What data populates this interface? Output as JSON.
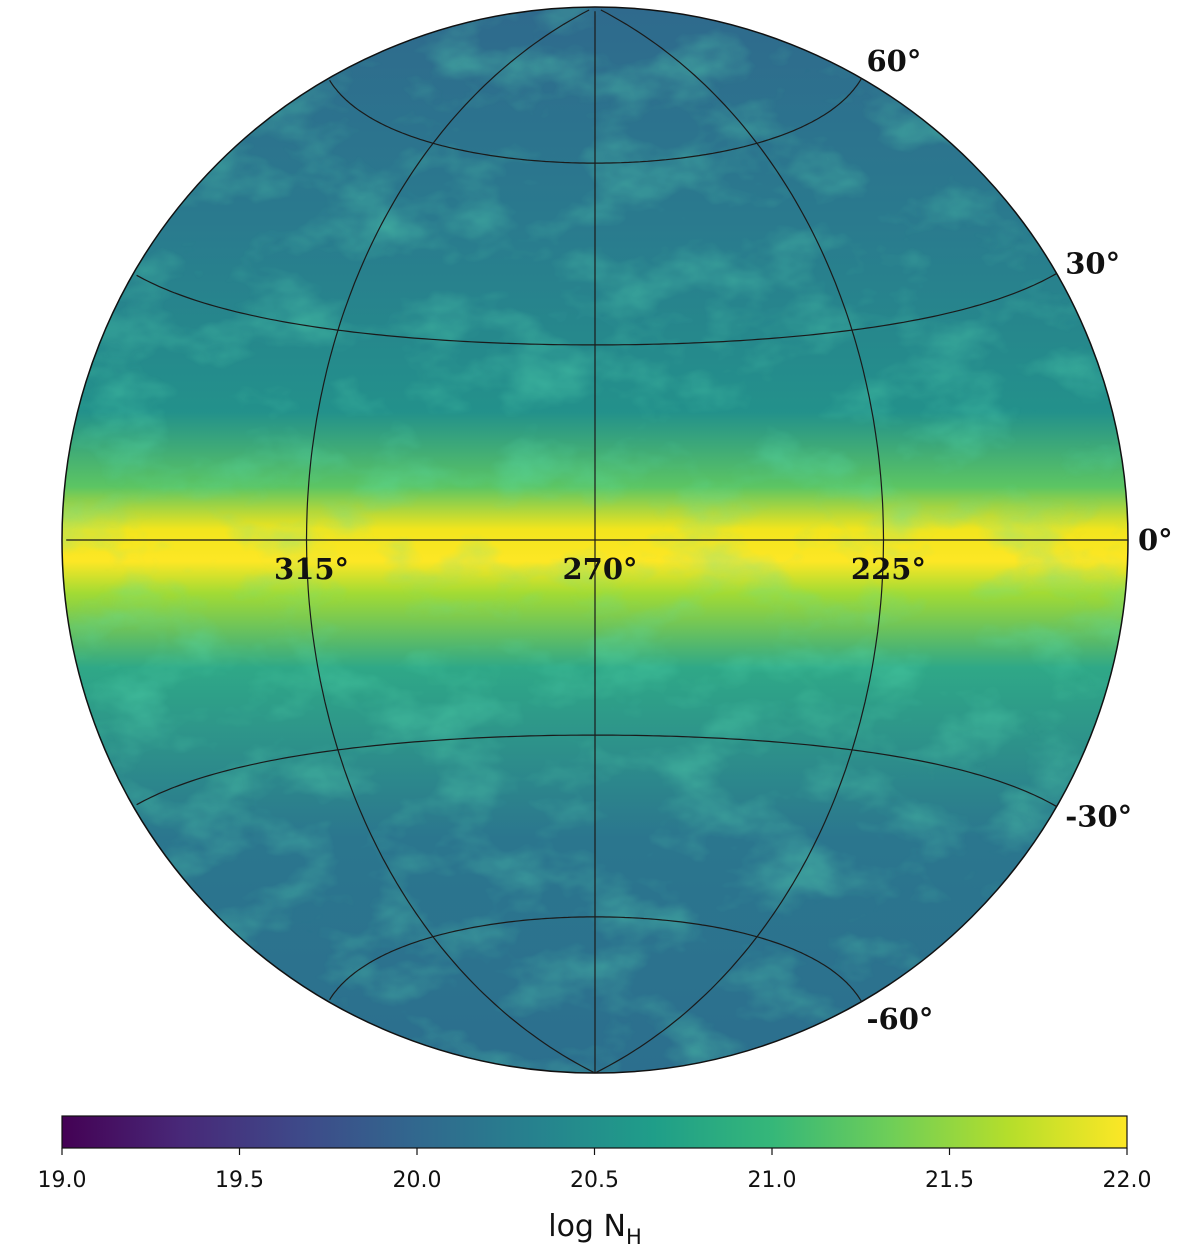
{
  "map": {
    "projection": "lambert-azimuthal-equal-area",
    "center_lon": 270,
    "center_lat": 0,
    "meridians": [
      {
        "value": 315,
        "label": "315°"
      },
      {
        "value": 270,
        "label": "270°"
      },
      {
        "value": 225,
        "label": "225°"
      }
    ],
    "parallels": [
      {
        "value": 60,
        "label": "60°"
      },
      {
        "value": 30,
        "label": "30°"
      },
      {
        "value": 0,
        "label": "0°"
      },
      {
        "value": -30,
        "label": "-30°"
      },
      {
        "value": -60,
        "label": "-60°"
      }
    ]
  },
  "colorbar": {
    "lim": [
      19,
      22
    ],
    "ticks": [
      {
        "value": 19,
        "label": "19.0"
      },
      {
        "value": 19.5,
        "label": "19.5"
      },
      {
        "value": 20,
        "label": "20.0"
      },
      {
        "value": 20.5,
        "label": "20.5"
      },
      {
        "value": 21,
        "label": "21.0"
      },
      {
        "value": 21.5,
        "label": "21.5"
      },
      {
        "value": 22,
        "label": "22.0"
      }
    ],
    "label": "log N",
    "label_subscript": "H",
    "colors": [
      "#440154",
      "#482878",
      "#3e4989",
      "#31688e",
      "#26828e",
      "#1f9e89",
      "#35b779",
      "#6ece58",
      "#b5de2b",
      "#fde725"
    ]
  }
}
